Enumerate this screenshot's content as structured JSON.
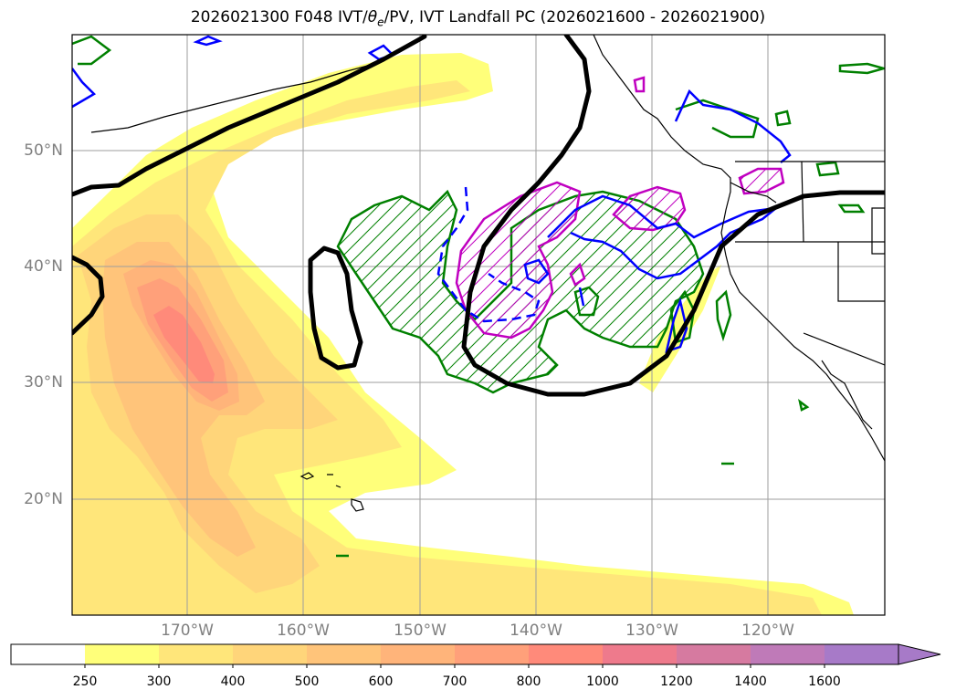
{
  "title": "2026021300 F048 IVT/θe/PV, IVT Landfall PC (2026021600 - 2026021900)",
  "title_parts": {
    "prefix": "2026021300 F048 IVT/",
    "theta": "θ",
    "theta_sub": "e",
    "suffix": "/PV, IVT Landfall PC (2026021600 - 2026021900)"
  },
  "map": {
    "lat_ticks": [
      {
        "value": 50,
        "label": "50°N"
      },
      {
        "value": 40,
        "label": "40°N"
      },
      {
        "value": 30,
        "label": "30°N"
      },
      {
        "value": 20,
        "label": "20°N"
      }
    ],
    "lon_ticks": [
      {
        "value": -170,
        "label": "170°W"
      },
      {
        "value": -160,
        "label": "160°W"
      },
      {
        "value": -150,
        "label": "150°W"
      },
      {
        "value": -140,
        "label": "140°W"
      },
      {
        "value": -130,
        "label": "130°W"
      },
      {
        "value": -120,
        "label": "120°W"
      }
    ],
    "extent": {
      "lon_min": -180,
      "lon_max": -110,
      "lat_min": 10,
      "lat_max": 60
    }
  },
  "colorbar": {
    "extend": "max",
    "levels": [
      250,
      300,
      400,
      500,
      600,
      700,
      800,
      1000,
      1200,
      1400,
      1600
    ],
    "level_labels": [
      "250",
      "300",
      "400",
      "500",
      "600",
      "700",
      "800",
      "1000",
      "1200",
      "1400",
      "1600"
    ],
    "below_color": "#ffffff",
    "colors": [
      "#ffff7a",
      "#ffe67a",
      "#ffd57a",
      "#ffc47a",
      "#ffb47a",
      "#ffa07a",
      "#ff8a7a",
      "#ee7a8c",
      "#d67aa0",
      "#bf7ab8",
      "#a77ac8"
    ]
  },
  "legend_colors": {
    "theta_e": "#000000",
    "pv_blue": "#0000ff",
    "pv_magenta": "#c000c0",
    "landfall_pc": "#008000"
  }
}
